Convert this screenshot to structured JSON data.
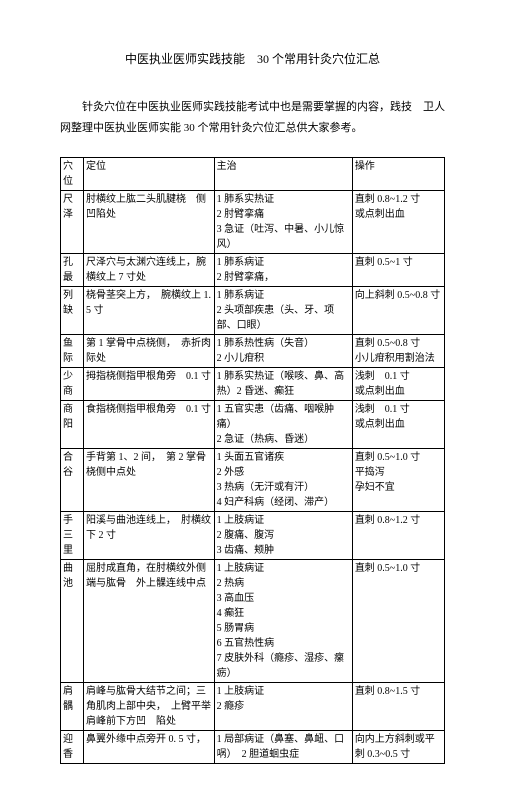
{
  "title": "中医执业医师实践技能　30 个常用针灸穴位汇总",
  "intro_line1": "针灸穴位在中医执业医师实践技能考试中也是需要掌握的内容，践技　卫人网整理中医执业医师实能 30 个常用针灸穴位汇总供大家参考。",
  "header": {
    "name": "穴位",
    "loc": "定位",
    "ind": "主治",
    "op": "操作"
  },
  "rows": [
    {
      "name": "尺泽",
      "loc": "肘横纹上肱二头肌腱桡　侧凹陷处",
      "ind": "1 肺系实热证\n2 肘臂挛痛\n3 急证（吐泻、中暑、小儿惊风）",
      "op": "直刺 0.8~1.2 寸\n或点刺出血"
    },
    {
      "name": "孔最",
      "loc": "尺泽穴与太渊穴连线上，腕横纹上 7 寸处",
      "ind": "1 肺系病证\n2 肘臂挛痛，",
      "op": "直刺 0.5~1 寸"
    },
    {
      "name": "列缺",
      "loc": "桡骨茎突上方，　腕横纹上 1.5 寸",
      "ind": "1 肺系病证\n2 头项部疾患（头、牙、项部、口眼）",
      "op": "向上斜刺 0.5~0.8 寸"
    },
    {
      "name": "鱼际",
      "loc": "第 1 掌骨中点桡侧，　赤折肉际处",
      "ind": "1 肺系热性病（失音）\n2 小儿疳积",
      "op": "直刺 0.5~0.8 寸\n小儿疳积用割治法"
    },
    {
      "name": "少商",
      "loc": "拇指桡侧指甲根角旁　0.1 寸",
      "ind": "1 肺系实热证（喉咳、鼻、高热）2 昏迷、癫狂",
      "op": "浅刺　0.1 寸\n或点刺出血"
    },
    {
      "name": "商阳",
      "loc": "食指桡侧指甲根角旁　0.1 寸",
      "ind": "1 五官实患（齿痛、咽喉肿痛）\n2 急证（热病、昏迷）",
      "op": "浅刺　0.1 寸\n或点刺出血"
    },
    {
      "name": "合谷",
      "loc": "手背第 1、2 间，　第 2 掌骨桡侧中点处",
      "ind": "1 头面五官诸疾\n2 外感\n3 热病（无汗或有汗）\n4 妇产科病（经闭、滞产）",
      "op": "直刺 0.5~1.0 寸\n平捣泻\n孕妇不宜"
    },
    {
      "name": "手三里",
      "loc": "阳溪与曲池连线上，　肘横纹下 2 寸",
      "ind": "1 上肢病证\n2 腹痛、腹泻\n3 齿痛、颊肿",
      "op": "直刺 0.8~1.2 寸"
    },
    {
      "name": "曲池",
      "loc": "屈肘成直角，在肘横纹外侧端与肱骨　外上髁连线中点",
      "ind": "1 上肢病证\n2 热病\n3 高血压\n4 癫狂\n5 肠胃病\n6 五官热性病\n7 皮肤外科（瘾疹、湿疹、瘰疬）",
      "op": "直刺 0.5~1.0 寸"
    },
    {
      "name": "肩髃",
      "loc": "肩峰与肱骨大结节之间；三角肌肉上部中央，　上臂平举肩峰前下方凹　陷处",
      "ind": "1 上肢病证\n2 瘾疹",
      "op": "直刺 0.8~1.5 寸"
    },
    {
      "name": "迎香",
      "loc": "鼻翼外缘中点旁开 0. 5 寸，",
      "ind": "1 局部病证（鼻塞、鼻衄、口㖞）　2 胆道蛔虫症",
      "op": "向内上方斜刺或平刺 0.3~0.5 寸"
    }
  ]
}
